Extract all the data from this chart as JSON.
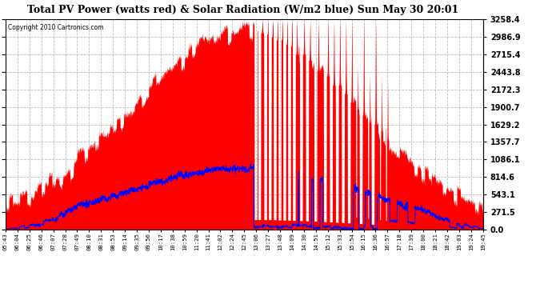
{
  "title": "Total PV Power (watts red) & Solar Radiation (W/m2 blue) Sun May 30 20:01",
  "copyright": "Copyright 2010 Cartronics.com",
  "yticks_right": [
    0.0,
    271.5,
    543.1,
    814.6,
    1086.1,
    1357.7,
    1629.2,
    1900.7,
    2172.3,
    2443.8,
    2715.4,
    2986.9,
    3258.4
  ],
  "ymax": 3258.4,
  "bg_color": "#ffffff",
  "grid_color": "#bbbbbb",
  "pv_color": "#ff0000",
  "solar_color": "#0000ff",
  "x_labels": [
    "05:43",
    "06:04",
    "06:25",
    "06:46",
    "07:07",
    "07:28",
    "07:49",
    "08:10",
    "08:31",
    "08:53",
    "09:14",
    "09:35",
    "09:56",
    "10:17",
    "10:38",
    "10:59",
    "11:20",
    "11:41",
    "12:02",
    "12:24",
    "12:45",
    "13:06",
    "13:27",
    "13:48",
    "14:09",
    "14:30",
    "14:51",
    "15:12",
    "15:33",
    "15:54",
    "16:15",
    "16:36",
    "16:57",
    "17:18",
    "17:39",
    "18:00",
    "18:21",
    "18:42",
    "19:03",
    "19:24",
    "19:45"
  ]
}
